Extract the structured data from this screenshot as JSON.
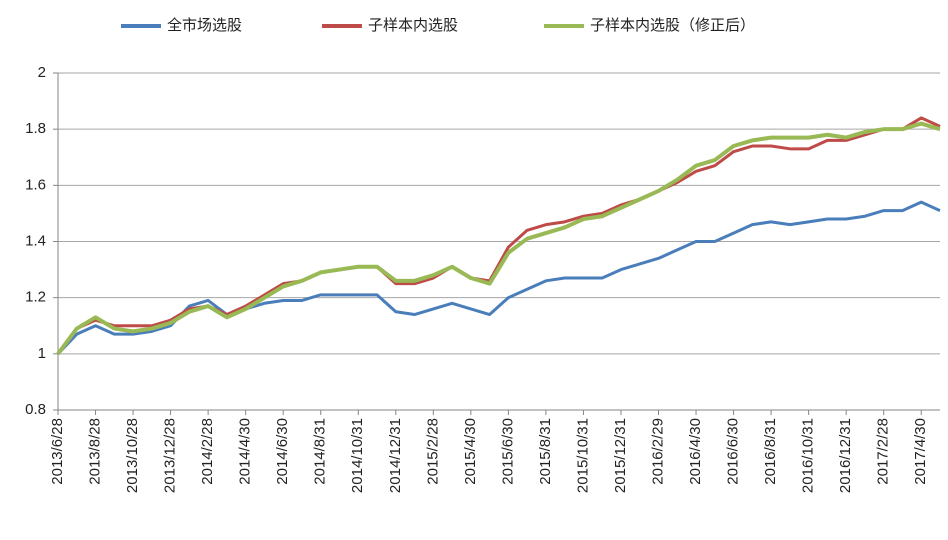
{
  "chart_data": {
    "type": "line",
    "categories": [
      "2013/6/28",
      null,
      "2013/8/28",
      null,
      "2013/10/28",
      null,
      "2013/12/28",
      null,
      "2014/2/28",
      null,
      "2014/4/30",
      null,
      "2014/6/30",
      null,
      "2014/8/31",
      null,
      "2014/10/31",
      null,
      "2014/12/31",
      null,
      "2015/2/28",
      null,
      "2015/4/30",
      null,
      "2015/6/30",
      null,
      "2015/8/31",
      null,
      "2015/10/31",
      null,
      "2015/12/31",
      null,
      "2016/2/29",
      null,
      "2016/4/30",
      null,
      "2016/6/30",
      null,
      "2016/8/31",
      null,
      "2016/10/31",
      null,
      "2016/12/31",
      null,
      "2017/2/28",
      null,
      "2017/4/30",
      null
    ],
    "series": [
      {
        "name": "全市场选股",
        "color": "#4a7ebb",
        "values": [
          1.0,
          1.07,
          1.1,
          1.07,
          1.07,
          1.08,
          1.1,
          1.17,
          1.19,
          1.14,
          1.16,
          1.18,
          1.19,
          1.19,
          1.21,
          1.21,
          1.21,
          1.21,
          1.15,
          1.14,
          1.16,
          1.18,
          1.16,
          1.14,
          1.2,
          1.23,
          1.26,
          1.27,
          1.27,
          1.27,
          1.3,
          1.32,
          1.34,
          1.37,
          1.4,
          1.4,
          1.43,
          1.46,
          1.47,
          1.46,
          1.47,
          1.48,
          1.48,
          1.49,
          1.51,
          1.51,
          1.54,
          1.51
        ]
      },
      {
        "name": "子样本内选股",
        "color": "#be4b48",
        "values": [
          1.0,
          1.09,
          1.12,
          1.1,
          1.1,
          1.1,
          1.12,
          1.16,
          1.17,
          1.14,
          1.17,
          1.21,
          1.25,
          1.26,
          1.29,
          1.3,
          1.31,
          1.31,
          1.25,
          1.25,
          1.27,
          1.31,
          1.27,
          1.26,
          1.38,
          1.44,
          1.46,
          1.47,
          1.49,
          1.5,
          1.53,
          1.55,
          1.58,
          1.61,
          1.65,
          1.67,
          1.72,
          1.74,
          1.74,
          1.73,
          1.73,
          1.76,
          1.76,
          1.78,
          1.8,
          1.8,
          1.84,
          1.81
        ]
      },
      {
        "name": "子样本内选股（修正后）",
        "color": "#98b954",
        "values": [
          1.0,
          1.09,
          1.13,
          1.09,
          1.08,
          1.09,
          1.11,
          1.15,
          1.17,
          1.13,
          1.16,
          1.2,
          1.24,
          1.26,
          1.29,
          1.3,
          1.31,
          1.31,
          1.26,
          1.26,
          1.28,
          1.31,
          1.27,
          1.25,
          1.36,
          1.41,
          1.43,
          1.45,
          1.48,
          1.49,
          1.52,
          1.55,
          1.58,
          1.62,
          1.67,
          1.69,
          1.74,
          1.76,
          1.77,
          1.77,
          1.77,
          1.78,
          1.77,
          1.79,
          1.8,
          1.8,
          1.82,
          1.8
        ]
      }
    ],
    "ylim": [
      0.8,
      2
    ],
    "yticks": [
      0.8,
      1,
      1.2,
      1.4,
      1.6,
      1.8,
      2
    ],
    "grid": true,
    "legend": "top"
  }
}
